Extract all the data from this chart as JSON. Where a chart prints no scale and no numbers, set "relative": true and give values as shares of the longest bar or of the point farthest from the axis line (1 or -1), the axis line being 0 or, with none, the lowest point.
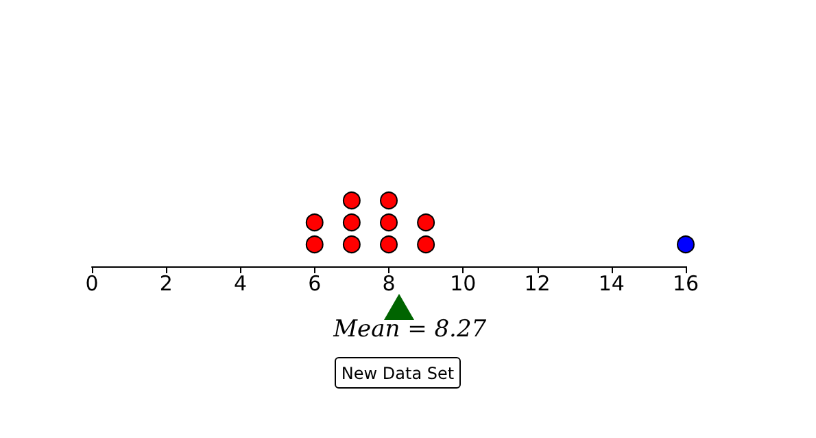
{
  "chart_data": {
    "type": "scatter",
    "relative": true,
    "xlim": [
      0,
      16
    ],
    "xticks": [
      0,
      2,
      4,
      6,
      8,
      10,
      12,
      14,
      16
    ],
    "tick_labels": "x",
    "grid": false,
    "marker": "circle",
    "series": [
      {
        "color": "#ff0000",
        "x": [
          6,
          6,
          7,
          7,
          7,
          8,
          8,
          8,
          9,
          9
        ],
        "values": [
          0.3333,
          0.6667,
          0.3333,
          0.6667,
          1,
          0.3333,
          0.6667,
          1,
          0.3333,
          0.6667
        ]
      },
      {
        "color": "#0000ff",
        "x": [
          16
        ],
        "values": [
          0.3333
        ]
      }
    ],
    "annotations": [
      "Mean = 8.27",
      "New Data Set"
    ]
  }
}
